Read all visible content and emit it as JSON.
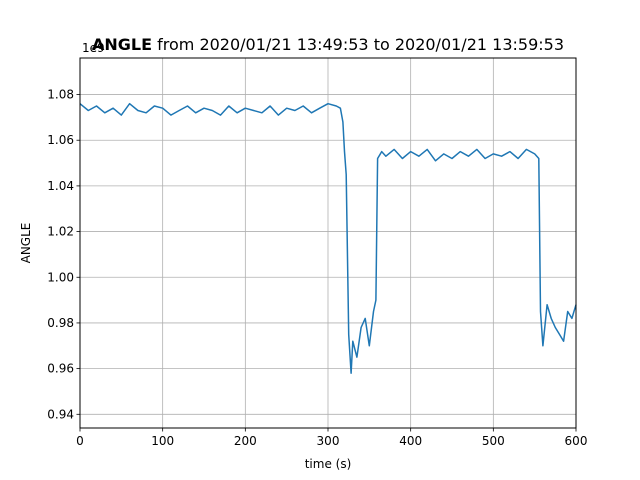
{
  "chart_data": {
    "type": "line",
    "title_bold": "ANGLE",
    "title_rest": " from 2020/01/21 13:49:53 to 2020/01/21 13:59:53",
    "xlabel": "time (s)",
    "ylabel": "ANGLE",
    "offset_label": "1e9",
    "xlim": [
      0,
      600
    ],
    "ylim": [
      0.934,
      1.096
    ],
    "x_ticks": [
      0,
      100,
      200,
      300,
      400,
      500,
      600
    ],
    "y_ticks": [
      0.94,
      0.96,
      0.98,
      1.0,
      1.02,
      1.04,
      1.06,
      1.08
    ],
    "grid": true,
    "line_color": "#1f77b4",
    "series": [
      {
        "x": [
          0,
          10,
          20,
          30,
          40,
          50,
          60,
          70,
          80,
          90,
          100,
          110,
          120,
          130,
          140,
          150,
          160,
          170,
          180,
          190,
          200,
          210,
          220,
          230,
          240,
          250,
          260,
          270,
          280,
          290,
          300,
          310,
          315,
          318,
          320,
          322,
          325,
          328,
          330,
          335,
          340,
          345,
          350,
          355,
          358,
          360,
          365,
          370,
          380,
          390,
          400,
          410,
          420,
          430,
          440,
          450,
          460,
          470,
          480,
          490,
          500,
          510,
          520,
          530,
          540,
          550,
          555,
          557,
          560,
          565,
          570,
          575,
          580,
          585,
          590,
          595,
          600
        ],
        "y": [
          1.076,
          1.073,
          1.075,
          1.072,
          1.074,
          1.071,
          1.076,
          1.073,
          1.072,
          1.075,
          1.074,
          1.071,
          1.073,
          1.075,
          1.072,
          1.074,
          1.073,
          1.071,
          1.075,
          1.072,
          1.074,
          1.073,
          1.072,
          1.075,
          1.071,
          1.074,
          1.073,
          1.075,
          1.072,
          1.074,
          1.076,
          1.075,
          1.074,
          1.068,
          1.055,
          1.045,
          0.975,
          0.958,
          0.972,
          0.965,
          0.978,
          0.982,
          0.97,
          0.985,
          0.99,
          1.052,
          1.055,
          1.053,
          1.056,
          1.052,
          1.055,
          1.053,
          1.056,
          1.051,
          1.054,
          1.052,
          1.055,
          1.053,
          1.056,
          1.052,
          1.054,
          1.053,
          1.055,
          1.052,
          1.056,
          1.054,
          1.052,
          0.985,
          0.97,
          0.988,
          0.982,
          0.978,
          0.975,
          0.972,
          0.985,
          0.982,
          0.988
        ]
      }
    ]
  }
}
